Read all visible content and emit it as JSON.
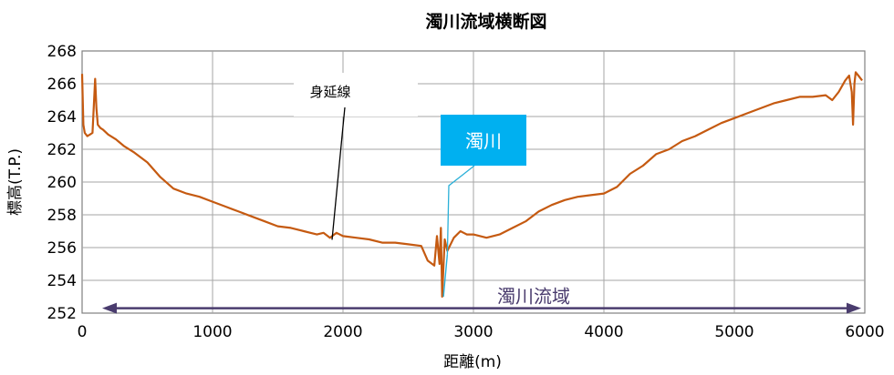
{
  "chart_data": {
    "type": "line",
    "title": "濁川流域横断図",
    "xlabel": "距離(m)",
    "ylabel": "標高(T.P.)",
    "xlim": [
      0,
      6000
    ],
    "ylim": [
      252,
      268
    ],
    "xticks": [
      "0",
      "1000",
      "2000",
      "3000",
      "4000",
      "5000",
      "6000"
    ],
    "yticks": [
      "252",
      "254",
      "256",
      "258",
      "260",
      "262",
      "264",
      "266",
      "268"
    ],
    "grid": true,
    "series": [
      {
        "color": "#c55a11",
        "x": [
          0,
          10,
          20,
          40,
          60,
          80,
          100,
          110,
          120,
          140,
          160,
          200,
          260,
          320,
          400,
          500,
          600,
          700,
          800,
          900,
          1000,
          1100,
          1200,
          1300,
          1400,
          1500,
          1600,
          1700,
          1800,
          1850,
          1900,
          1950,
          2000,
          2100,
          2200,
          2300,
          2400,
          2500,
          2600,
          2650,
          2700,
          2720,
          2740,
          2750,
          2760,
          2770,
          2780,
          2800,
          2850,
          2900,
          2950,
          3000,
          3100,
          3200,
          3300,
          3400,
          3500,
          3600,
          3700,
          3800,
          3900,
          4000,
          4100,
          4200,
          4300,
          4400,
          4500,
          4600,
          4700,
          4800,
          4900,
          5000,
          5100,
          5200,
          5300,
          5400,
          5500,
          5600,
          5700,
          5750,
          5800,
          5850,
          5880,
          5900,
          5910,
          5920,
          5930,
          5950,
          5980
        ],
        "y": [
          266.6,
          263.5,
          263.0,
          262.8,
          262.9,
          263.0,
          266.3,
          264.5,
          263.5,
          263.3,
          263.2,
          262.9,
          262.6,
          262.2,
          261.8,
          261.2,
          260.3,
          259.6,
          259.3,
          259.1,
          258.8,
          258.5,
          258.2,
          257.9,
          257.6,
          257.3,
          257.2,
          257.0,
          256.8,
          256.9,
          256.6,
          256.9,
          256.7,
          256.6,
          256.5,
          256.3,
          256.3,
          256.2,
          256.1,
          255.2,
          254.9,
          256.7,
          255.0,
          257.2,
          253.0,
          254.8,
          256.5,
          255.8,
          256.6,
          257.0,
          256.8,
          256.8,
          256.6,
          256.8,
          257.2,
          257.6,
          258.2,
          258.6,
          258.9,
          259.1,
          259.2,
          259.3,
          259.7,
          260.5,
          261.0,
          261.7,
          262.0,
          262.5,
          262.8,
          263.2,
          263.6,
          263.9,
          264.2,
          264.5,
          264.8,
          265.0,
          265.2,
          265.2,
          265.3,
          265.0,
          265.5,
          266.2,
          266.5,
          265.5,
          263.5,
          266.0,
          266.7,
          266.5,
          266.2
        ]
      },
      {
        "name": "濁川",
        "color": "#2ab0d8",
        "x": [
          2770,
          2800
        ],
        "y": [
          253.0,
          255.6
        ]
      }
    ],
    "annotations": [
      {
        "text": "身延線",
        "x": 1900,
        "y": 266.2,
        "target_x": 1900,
        "target_y": 256.7
      },
      {
        "text": "濁川",
        "x": 3000,
        "y": 262.6,
        "target_x": 2800,
        "target_y": 255.6,
        "fill": "#00b0f0",
        "text_color": "#ffffff"
      }
    ],
    "range_label": {
      "text": "濁川流域",
      "from": 0,
      "to": 6000,
      "y": 252.3,
      "color": "#4a3c6e"
    }
  }
}
